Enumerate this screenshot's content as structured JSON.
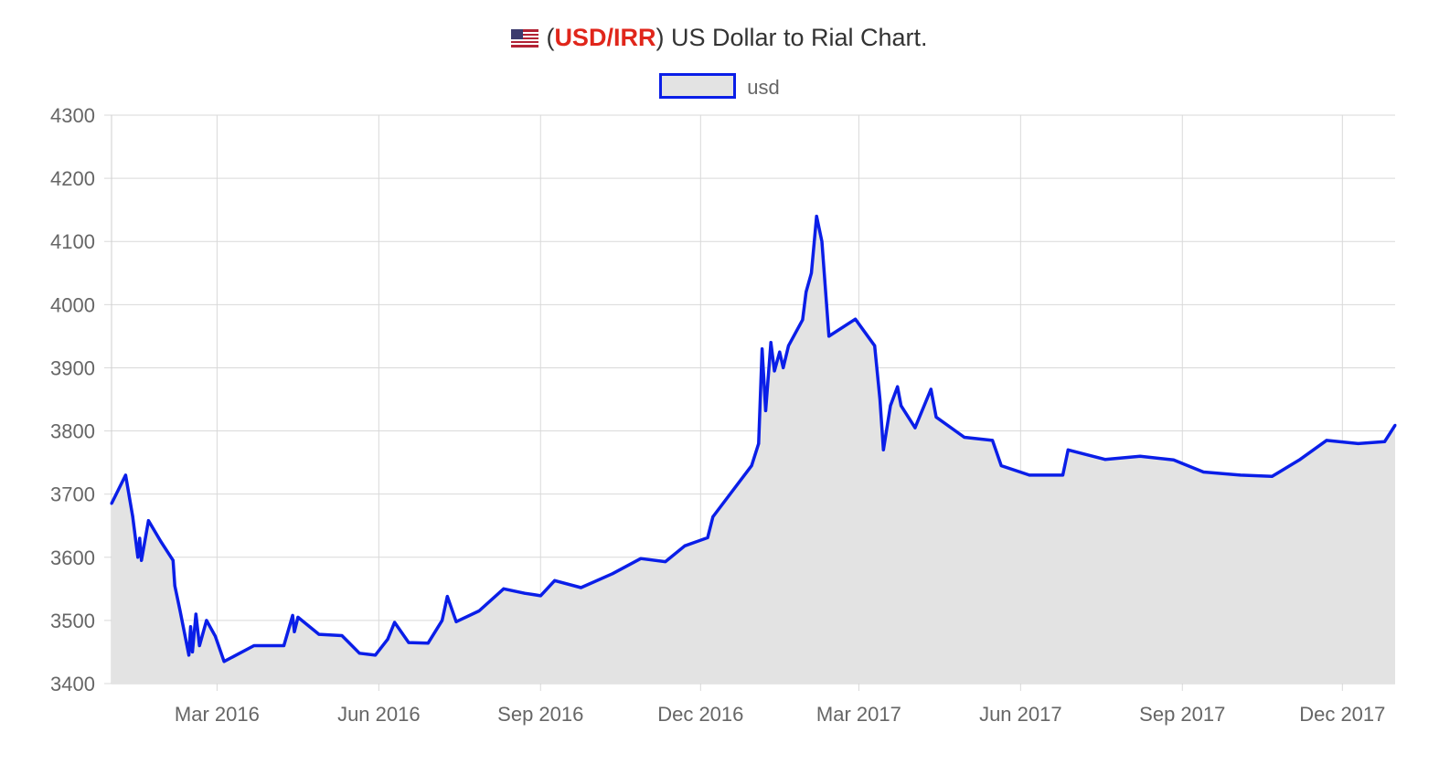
{
  "title": {
    "paren_open": "(",
    "pair": "USD/IRR",
    "rest": ") US Dollar to Rial Chart."
  },
  "colors": {
    "line": "#0a1ee8",
    "fill": "#e3e3e3",
    "pair": "#e0261b",
    "grid": "#d9d9d9"
  },
  "chart_data": {
    "type": "area",
    "title": "(USD/IRR) US Dollar to Rial Chart.",
    "legend": "top-center",
    "grid": true,
    "ylim": [
      3400,
      4300
    ],
    "y_ticks": [
      3400,
      3500,
      3600,
      3700,
      3800,
      3900,
      4000,
      4100,
      4200,
      4300
    ],
    "x_ticks": [
      {
        "date": "2016-03-01",
        "label": "Mar 2016"
      },
      {
        "date": "2016-06-01",
        "label": "Jun 2016"
      },
      {
        "date": "2016-09-01",
        "label": "Sep 2016"
      },
      {
        "date": "2016-12-01",
        "label": "Dec 2016"
      },
      {
        "date": "2017-03-01",
        "label": "Mar 2017"
      },
      {
        "date": "2017-06-01",
        "label": "Jun 2017"
      },
      {
        "date": "2017-09-01",
        "label": "Sep 2017"
      },
      {
        "date": "2017-12-01",
        "label": "Dec 2017"
      }
    ],
    "xlim": [
      "2016-01-01",
      "2017-12-31"
    ],
    "series": [
      {
        "name": "usd",
        "points": [
          [
            "2016-01-01",
            3685
          ],
          [
            "2016-01-09",
            3730
          ],
          [
            "2016-01-13",
            3665
          ],
          [
            "2016-01-16",
            3600
          ],
          [
            "2016-01-17",
            3630
          ],
          [
            "2016-01-18",
            3595
          ],
          [
            "2016-01-22",
            3658
          ],
          [
            "2016-01-29",
            3625
          ],
          [
            "2016-02-05",
            3595
          ],
          [
            "2016-02-06",
            3555
          ],
          [
            "2016-02-09",
            3515
          ],
          [
            "2016-02-14",
            3445
          ],
          [
            "2016-02-15",
            3490
          ],
          [
            "2016-02-16",
            3450
          ],
          [
            "2016-02-18",
            3510
          ],
          [
            "2016-02-20",
            3460
          ],
          [
            "2016-02-24",
            3500
          ],
          [
            "2016-02-29",
            3475
          ],
          [
            "2016-03-05",
            3435
          ],
          [
            "2016-03-22",
            3460
          ],
          [
            "2016-04-08",
            3460
          ],
          [
            "2016-04-13",
            3508
          ],
          [
            "2016-04-14",
            3482
          ],
          [
            "2016-04-16",
            3505
          ],
          [
            "2016-04-28",
            3478
          ],
          [
            "2016-05-11",
            3476
          ],
          [
            "2016-05-21",
            3448
          ],
          [
            "2016-05-30",
            3445
          ],
          [
            "2016-06-06",
            3470
          ],
          [
            "2016-06-10",
            3497
          ],
          [
            "2016-06-18",
            3465
          ],
          [
            "2016-06-29",
            3464
          ],
          [
            "2016-07-07",
            3500
          ],
          [
            "2016-07-10",
            3538
          ],
          [
            "2016-07-15",
            3498
          ],
          [
            "2016-07-28",
            3515
          ],
          [
            "2016-08-11",
            3550
          ],
          [
            "2016-08-23",
            3543
          ],
          [
            "2016-08-28",
            3541
          ],
          [
            "2016-09-01",
            3539
          ],
          [
            "2016-09-09",
            3563
          ],
          [
            "2016-09-24",
            3552
          ],
          [
            "2016-10-12",
            3574
          ],
          [
            "2016-10-28",
            3598
          ],
          [
            "2016-11-11",
            3593
          ],
          [
            "2016-11-22",
            3618
          ],
          [
            "2016-12-05",
            3631
          ],
          [
            "2016-12-08",
            3664
          ],
          [
            "2016-12-30",
            3745
          ],
          [
            "2017-01-03",
            3780
          ],
          [
            "2017-01-05",
            3930
          ],
          [
            "2017-01-07",
            3832
          ],
          [
            "2017-01-10",
            3940
          ],
          [
            "2017-01-12",
            3895
          ],
          [
            "2017-01-15",
            3925
          ],
          [
            "2017-01-17",
            3900
          ],
          [
            "2017-01-20",
            3935
          ],
          [
            "2017-01-28",
            3976
          ],
          [
            "2017-01-30",
            4020
          ],
          [
            "2017-02-02",
            4050
          ],
          [
            "2017-02-05",
            4140
          ],
          [
            "2017-02-08",
            4100
          ],
          [
            "2017-02-12",
            3950
          ],
          [
            "2017-02-27",
            3977
          ],
          [
            "2017-03-10",
            3935
          ],
          [
            "2017-03-13",
            3850
          ],
          [
            "2017-03-15",
            3770
          ],
          [
            "2017-03-19",
            3840
          ],
          [
            "2017-03-23",
            3870
          ],
          [
            "2017-03-25",
            3840
          ],
          [
            "2017-04-02",
            3805
          ],
          [
            "2017-04-11",
            3866
          ],
          [
            "2017-04-14",
            3822
          ],
          [
            "2017-04-30",
            3790
          ],
          [
            "2017-05-16",
            3785
          ],
          [
            "2017-05-21",
            3745
          ],
          [
            "2017-06-06",
            3730
          ],
          [
            "2017-06-25",
            3730
          ],
          [
            "2017-06-28",
            3770
          ],
          [
            "2017-07-19",
            3755
          ],
          [
            "2017-08-08",
            3760
          ],
          [
            "2017-08-27",
            3754
          ],
          [
            "2017-09-13",
            3735
          ],
          [
            "2017-10-04",
            3730
          ],
          [
            "2017-10-22",
            3728
          ],
          [
            "2017-11-07",
            3755
          ],
          [
            "2017-11-22",
            3785
          ],
          [
            "2017-12-10",
            3780
          ],
          [
            "2017-12-25",
            3783
          ],
          [
            "2017-12-31",
            3809
          ]
        ]
      }
    ]
  }
}
